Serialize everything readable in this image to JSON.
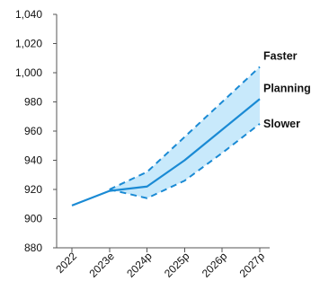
{
  "chart_data": {
    "type": "line",
    "title": "",
    "xlabel": "",
    "ylabel": "",
    "categories": [
      "2022",
      "2023e",
      "2024p",
      "2025p",
      "2026p",
      "2027p"
    ],
    "ylim": [
      880,
      1040
    ],
    "yticks": [
      880,
      900,
      920,
      940,
      960,
      980,
      1000,
      1020,
      1040
    ],
    "ytick_labels": [
      "880",
      "900",
      "920",
      "940",
      "960",
      "980",
      "1,000",
      "1,020",
      "1,040"
    ],
    "grid": false,
    "series": [
      {
        "name": "Faster",
        "style": "dashed",
        "values": [
          null,
          920,
          932,
          956,
          980,
          1004
        ]
      },
      {
        "name": "Planning",
        "style": "solid",
        "values": [
          909,
          919,
          922,
          940,
          961,
          982
        ]
      },
      {
        "name": "Slower",
        "style": "dashed",
        "values": [
          null,
          920,
          914,
          926,
          945,
          965
        ]
      }
    ],
    "band": {
      "between": [
        "Slower",
        "Faster"
      ],
      "color": "#c8e9fb"
    },
    "colors": {
      "line": "#1a8ad4",
      "band": "#c8e9fb",
      "axis": "#555555"
    }
  }
}
